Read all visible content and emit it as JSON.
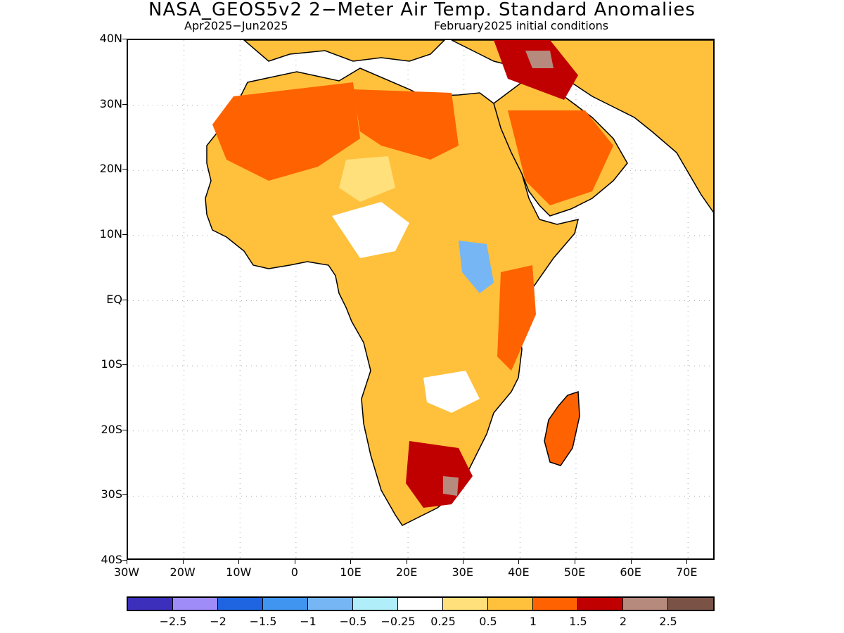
{
  "header": {
    "title": "NASA_GEOS5v2 2−Meter Air Temp. Standard Anomalies",
    "period": "Apr2025−Jun2025",
    "init": "February2025 initial conditions"
  },
  "map": {
    "region": "Africa",
    "lat_range": [
      -40,
      40
    ],
    "lon_range": [
      -30,
      75
    ],
    "lat_labels": [
      "40N",
      "30N",
      "20N",
      "10N",
      "EQ",
      "10S",
      "20S",
      "30S",
      "40S"
    ],
    "lon_labels": [
      "30W",
      "20W",
      "10W",
      "0",
      "10E",
      "20E",
      "30E",
      "40E",
      "50E",
      "60E",
      "70E"
    ],
    "grid": true,
    "land_color": "#ffc03c",
    "ocean_color": "#ffffff",
    "border_color": "#000000"
  },
  "legend": {
    "colors": [
      "#3c2fbb",
      "#9f8cf8",
      "#1f65e2",
      "#3f95f0",
      "#76b6f5",
      "#b0eefa",
      "#ffffff",
      "#ffe07a",
      "#ffc03c",
      "#ff6200",
      "#c00000",
      "#b68a7c",
      "#7a5246"
    ],
    "labels": [
      "−2.5",
      "−2",
      "−1.5",
      "−1",
      "−0.5",
      "−0.25",
      "0.25",
      "0.5",
      "1",
      "1.5",
      "2",
      "2.5"
    ]
  }
}
